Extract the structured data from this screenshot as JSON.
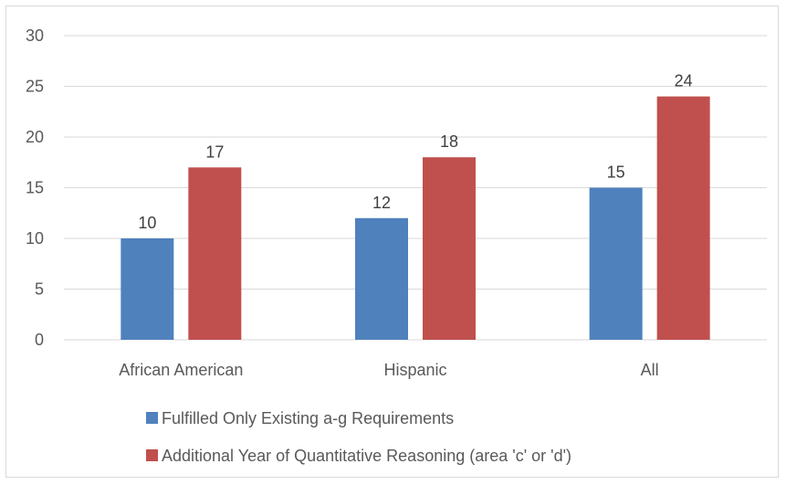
{
  "chart_data": {
    "type": "bar",
    "categories": [
      "African American",
      "Hispanic",
      "All"
    ],
    "series": [
      {
        "name": "Fulfilled Only Existing a-g Requirements",
        "color": "#4f81bd",
        "values": [
          10,
          12,
          15
        ]
      },
      {
        "name": "Additional Year of Quantitative Reasoning (area 'c' or 'd')",
        "color": "#c0504d",
        "values": [
          17,
          18,
          24
        ]
      }
    ],
    "ylim": [
      0,
      30
    ],
    "yticks": [
      "0",
      "5",
      "10",
      "15",
      "20",
      "25",
      "30"
    ],
    "grid": true,
    "legend": "bottom",
    "data_labels": true
  }
}
